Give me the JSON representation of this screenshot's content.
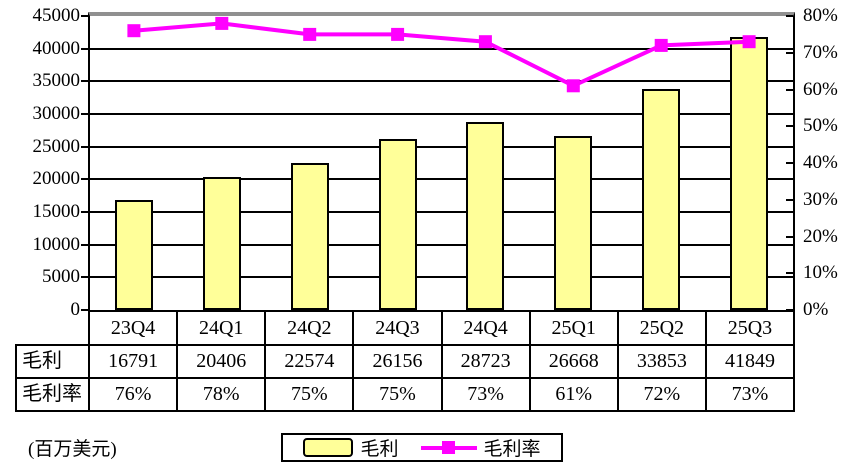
{
  "footnote": "(百万美元)",
  "colors": {
    "bar_fill": "#FFFF99",
    "bar_border": "#000000",
    "line": "#FF00FF",
    "grid": "#000000",
    "plot_top_border": "#909090"
  },
  "chart_data": {
    "type": "bar+line",
    "categories": [
      "23Q4",
      "24Q1",
      "24Q2",
      "24Q3",
      "24Q4",
      "25Q1",
      "25Q2",
      "25Q3"
    ],
    "series": [
      {
        "name": "毛利",
        "type": "bar",
        "axis": "left",
        "values": [
          16791,
          20406,
          22574,
          26156,
          28723,
          26668,
          33853,
          41849
        ]
      },
      {
        "name": "毛利率",
        "type": "line",
        "axis": "right",
        "values": [
          76,
          78,
          75,
          75,
          73,
          61,
          72,
          73
        ],
        "unit": "%"
      }
    ],
    "left_axis": {
      "min": 0,
      "max": 45000,
      "step": 5000,
      "ticks_top_down": [
        "45000",
        "40000",
        "35000",
        "30000",
        "25000",
        "20000",
        "15000",
        "10000",
        "5000",
        "0"
      ]
    },
    "right_axis": {
      "min": 0,
      "max": 80,
      "step": 10,
      "ticks_top_down": [
        "80%",
        "70%",
        "60%",
        "50%",
        "40%",
        "30%",
        "20%",
        "10%",
        "0%"
      ]
    },
    "grid": true,
    "legend_position": "bottom"
  },
  "table": {
    "header": [
      "",
      "23Q4",
      "24Q1",
      "24Q2",
      "24Q3",
      "24Q4",
      "25Q1",
      "25Q2",
      "25Q3"
    ],
    "rows": [
      {
        "label": "毛利",
        "values": [
          "16791",
          "20406",
          "22574",
          "26156",
          "28723",
          "26668",
          "33853",
          "41849"
        ]
      },
      {
        "label": "毛利率",
        "values": [
          "76%",
          "78%",
          "75%",
          "75%",
          "73%",
          "61%",
          "72%",
          "73%"
        ]
      }
    ]
  },
  "legend": {
    "items": [
      {
        "label": "毛利",
        "swatch": "bar"
      },
      {
        "label": "毛利率",
        "swatch": "line-marker"
      }
    ]
  }
}
